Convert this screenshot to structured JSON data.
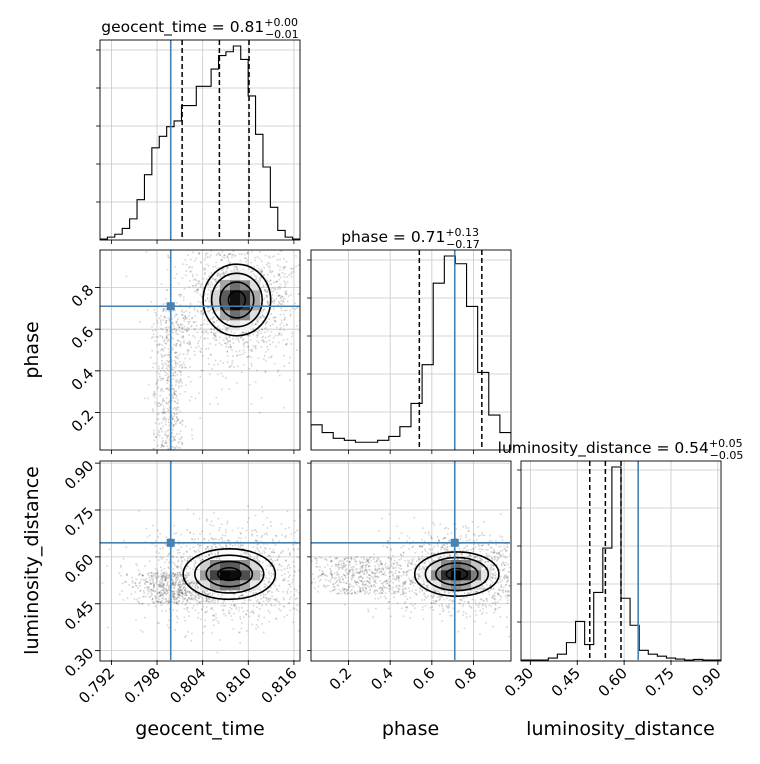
{
  "chart_data": {
    "type": "corner",
    "parameters": [
      "geocent_time",
      "phase",
      "luminosity_distance"
    ],
    "truth_color": "#4682b4",
    "ranges": {
      "geocent_time": [
        0.7905,
        0.8168
      ],
      "phase": [
        0.02,
        0.98
      ],
      "luminosity_distance": [
        0.27,
        0.91
      ]
    },
    "ticks": {
      "geocent_time": [
        "0.792",
        "0.798",
        "0.804",
        "0.810",
        "0.816"
      ],
      "phase": [
        "0.2",
        "0.4",
        "0.6",
        "0.8"
      ],
      "luminosity_distance": [
        "0.30",
        "0.45",
        "0.60",
        "0.75",
        "0.90"
      ]
    },
    "titles": [
      {
        "param": "geocent_time",
        "label": "geocent_time = 0.81",
        "sup": "+0.00",
        "sub": "−0.01"
      },
      {
        "param": "phase",
        "label": "phase = 0.71",
        "sup": "+0.13",
        "sub": "−0.17"
      },
      {
        "param": "luminosity_distance",
        "label": "luminosity_distance = 0.54",
        "sup": "+0.05",
        "sub": "−0.05"
      }
    ],
    "truths": {
      "geocent_time": 0.7998,
      "phase": 0.71,
      "luminosity_distance": 0.645
    },
    "quantiles": {
      "geocent_time": [
        0.8013,
        0.8062,
        0.8101
      ],
      "phase": [
        0.54,
        0.71,
        0.84
      ],
      "luminosity_distance": [
        0.49,
        0.54,
        0.59
      ]
    },
    "histograms": {
      "geocent_time": {
        "x_min": 0.7905,
        "x_max": 0.8168,
        "counts": [
          0.5,
          1.5,
          3,
          6,
          11,
          21,
          34,
          48,
          54,
          59,
          62,
          70,
          70,
          80,
          80,
          89,
          96,
          98,
          101,
          94,
          75,
          55,
          38,
          17,
          5,
          1.5,
          0.5
        ]
      },
      "phase": {
        "x_min": 0.02,
        "x_max": 0.98,
        "counts": [
          13,
          9,
          6,
          5,
          4,
          4,
          5,
          7,
          12,
          24,
          44,
          86,
          100,
          96,
          74,
          40,
          18,
          9
        ]
      },
      "luminosity_distance": {
        "x_min": 0.27,
        "x_max": 0.91,
        "counts": [
          0,
          0,
          0,
          1,
          3,
          9,
          20,
          8,
          35,
          58,
          100,
          32,
          18,
          5,
          3,
          2,
          1,
          0.5,
          0,
          0.3,
          0,
          0
        ]
      }
    },
    "pairs": [
      {
        "x": "geocent_time",
        "y": "phase",
        "peak": [
          0.8085,
          0.74
        ],
        "spread": [
          0.0022,
          0.085
        ],
        "tail": {
          "x": 0.7997,
          "y_range": [
            0.02,
            0.7
          ],
          "spread": 0.0012
        }
      },
      {
        "x": "geocent_time",
        "y": "luminosity_distance",
        "peak": [
          0.8075,
          0.545
        ],
        "spread": [
          0.003,
          0.04
        ],
        "tail": {
          "x": 0.8,
          "y_range": [
            0.45,
            0.55
          ],
          "spread": 0.0025
        }
      },
      {
        "x": "phase",
        "y": "luminosity_distance",
        "peak": [
          0.72,
          0.545
        ],
        "spread": [
          0.1,
          0.035
        ],
        "tail": {
          "x": 0.25,
          "y_range": [
            0.48,
            0.6
          ],
          "spread": 0.12
        }
      }
    ]
  }
}
